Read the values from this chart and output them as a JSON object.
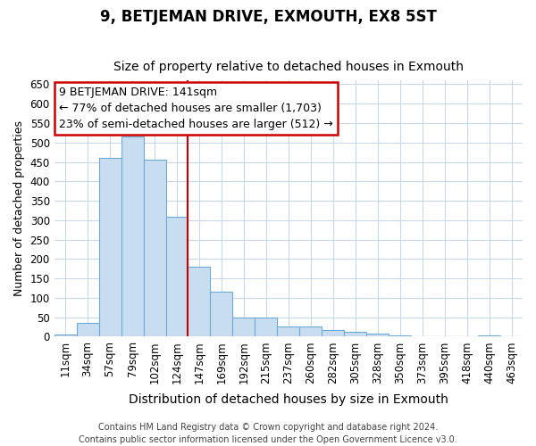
{
  "title": "9, BETJEMAN DRIVE, EXMOUTH, EX8 5ST",
  "subtitle": "Size of property relative to detached houses in Exmouth",
  "xlabel": "Distribution of detached houses by size in Exmouth",
  "ylabel": "Number of detached properties",
  "categories": [
    "11sqm",
    "34sqm",
    "57sqm",
    "79sqm",
    "102sqm",
    "124sqm",
    "147sqm",
    "169sqm",
    "192sqm",
    "215sqm",
    "237sqm",
    "260sqm",
    "282sqm",
    "305sqm",
    "328sqm",
    "350sqm",
    "373sqm",
    "395sqm",
    "418sqm",
    "440sqm",
    "463sqm"
  ],
  "values": [
    5,
    35,
    460,
    515,
    455,
    308,
    180,
    115,
    50,
    50,
    26,
    26,
    18,
    12,
    8,
    4,
    2,
    2,
    1,
    4,
    2
  ],
  "bar_color": "#c9ddf0",
  "bar_edge_color": "#6aaad4",
  "annotation_line1": "9 BETJEMAN DRIVE: 141sqm",
  "annotation_line2": "← 77% of detached houses are smaller (1,703)",
  "annotation_line3": "23% of semi-detached houses are larger (512) →",
  "vline_index": 6,
  "vline_color": "#cc0000",
  "annotation_box_color": "#ffffff",
  "annotation_box_edge": "#cc0000",
  "ylim": [
    0,
    660
  ],
  "yticks": [
    0,
    50,
    100,
    150,
    200,
    250,
    300,
    350,
    400,
    450,
    500,
    550,
    600,
    650
  ],
  "footer_line1": "Contains HM Land Registry data © Crown copyright and database right 2024.",
  "footer_line2": "Contains public sector information licensed under the Open Government Licence v3.0.",
  "bg_color": "#ffffff",
  "grid_color": "#c8d8ea",
  "title_fontsize": 12,
  "subtitle_fontsize": 10,
  "xlabel_fontsize": 10,
  "ylabel_fontsize": 9,
  "tick_fontsize": 8.5,
  "annotation_fontsize": 9,
  "footer_fontsize": 7
}
